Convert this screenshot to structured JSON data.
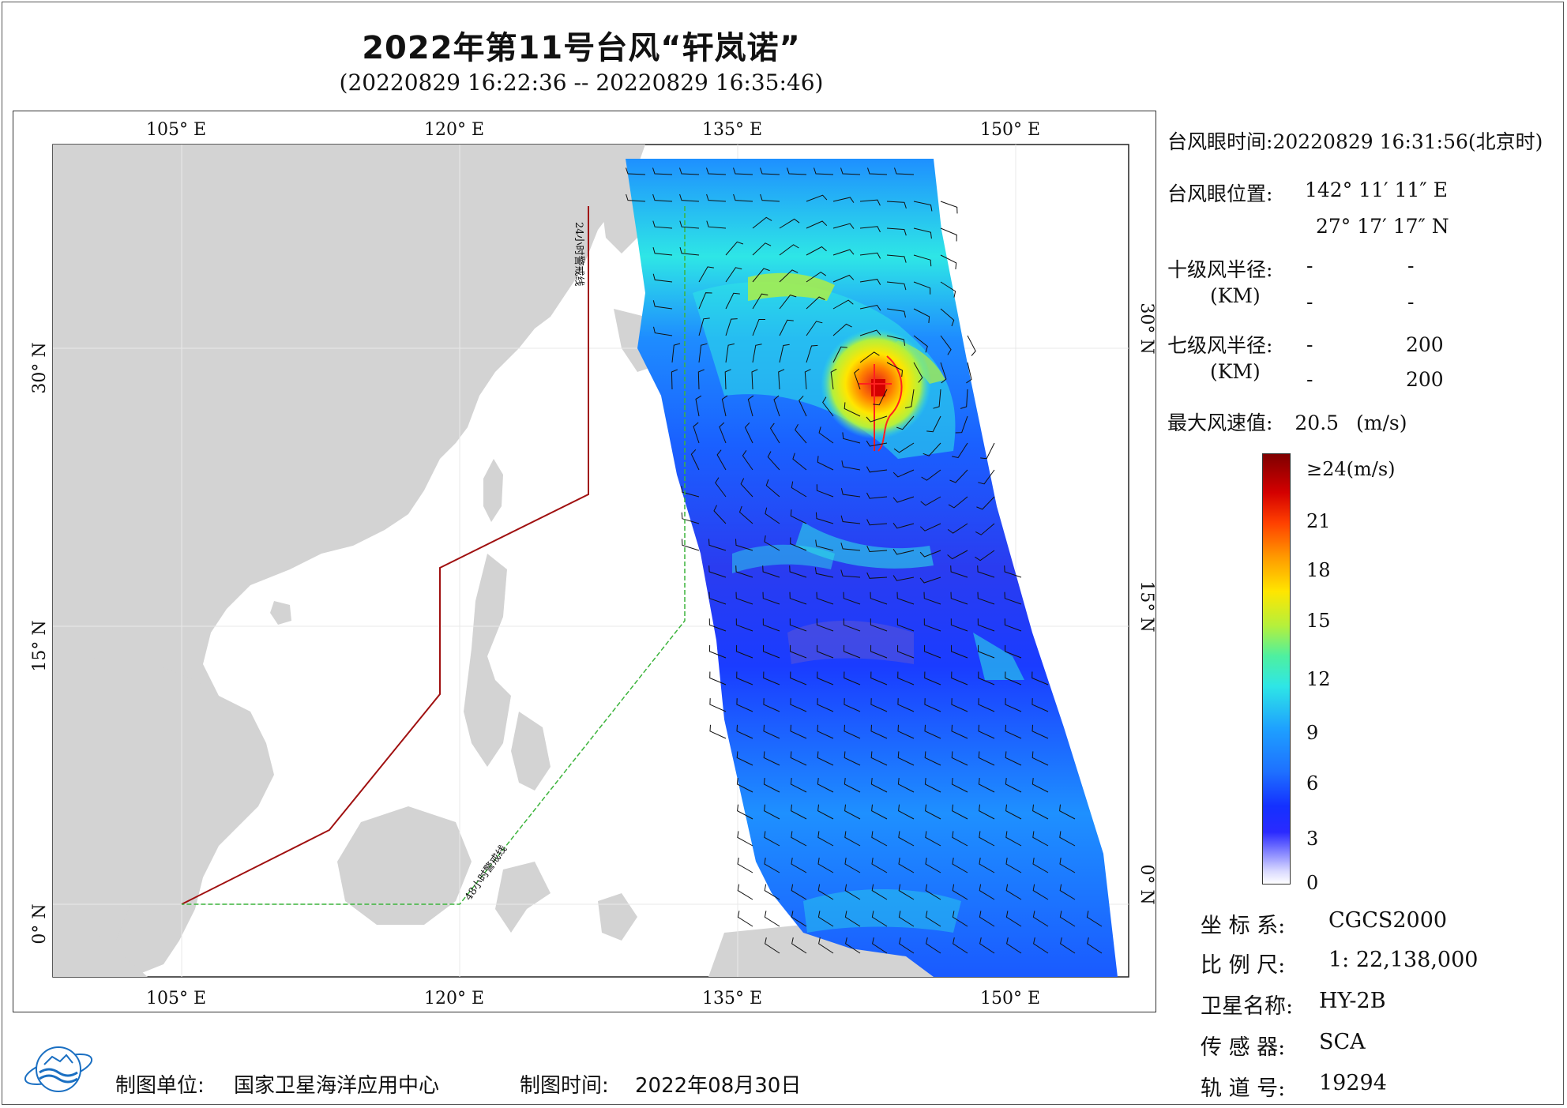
{
  "title": "2022年第11号台风“轩岚诺”",
  "subtitle": "(20220829 16:22:36 -- 20220829 16:35:46)",
  "map": {
    "lon_ticks": [
      "105° E",
      "120° E",
      "135° E",
      "150° E"
    ],
    "lat_ticks": [
      "30° N",
      "15° N",
      "0° N"
    ],
    "warning_24h": "24小时警戒线",
    "warning_48h": "48小时警戒线"
  },
  "info": {
    "eye_time_label": "台风眼时间:",
    "eye_time_value": "20220829 16:31:56(北京时)",
    "eye_pos_label": "台风眼位置:",
    "eye_lon": "142° 11′ 11″ E",
    "eye_lat": "27° 17′ 17″ N",
    "r10_label": "十级风半径:",
    "r10_unit": "(KM)",
    "r10_v1": "-",
    "r10_v2": "-",
    "r10_v3": "-",
    "r10_v4": "-",
    "r7_label": "七级风半径:",
    "r7_unit": "(KM)",
    "r7_v1": "-",
    "r7_v2": "200",
    "r7_v3": "-",
    "r7_v4": "200",
    "max_wind_label": "最大风速值:",
    "max_wind_value": "20.5",
    "max_wind_unit": "(m/s)"
  },
  "legend": {
    "labels": [
      "≥24(m/s)",
      "21",
      "18",
      "15",
      "12",
      "9",
      "6",
      "3",
      "0"
    ],
    "colors": [
      "#8b0000",
      "#e41a1c",
      "#ff7f00",
      "#ffe600",
      "#b4f03c",
      "#2ee6e6",
      "#1e90ff",
      "#1414ff",
      "#ffffff"
    ]
  },
  "meta": {
    "crs_label": "坐 标 系:",
    "crs_value": "CGCS2000",
    "scale_label": "比 例 尺:",
    "scale_value": "1: 22,138,000",
    "satellite_label": "卫星名称:",
    "satellite_value": "HY-2B",
    "sensor_label": "传 感 器:",
    "sensor_value": "SCA",
    "orbit_label": "轨 道 号:",
    "orbit_value": "19294"
  },
  "footer": {
    "unit_label": "制图单位:",
    "unit_value": "国家卫星海洋应用中心",
    "time_label": "制图时间:",
    "time_value": "2022年08月30日"
  },
  "colors": {
    "land": "#d3d3d3",
    "warn24": "#a01010",
    "warn48": "#3cb43c"
  }
}
